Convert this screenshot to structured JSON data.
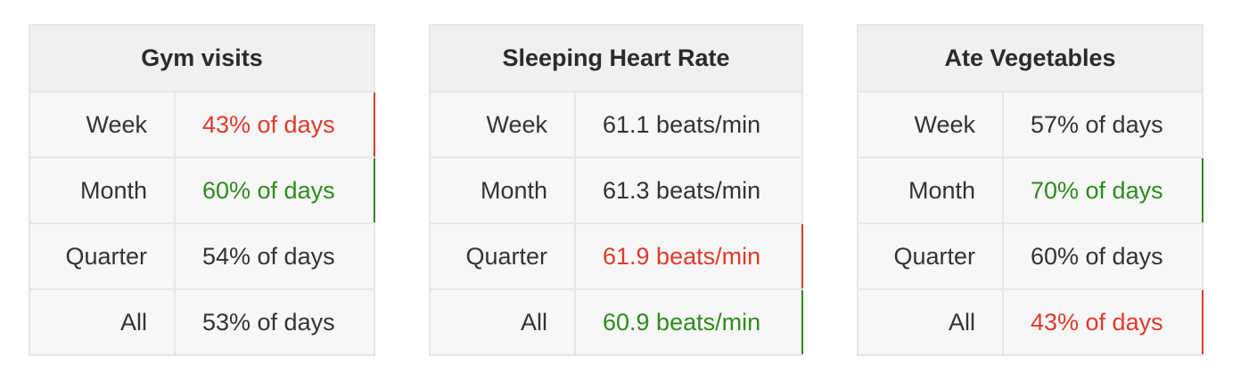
{
  "tables": [
    {
      "title": "Gym visits",
      "rows": [
        {
          "period": "Week",
          "value": "43% of days",
          "status": "bad"
        },
        {
          "period": "Month",
          "value": "60% of days",
          "status": "good"
        },
        {
          "period": "Quarter",
          "value": "54% of days",
          "status": "neutral"
        },
        {
          "period": "All",
          "value": "53% of days",
          "status": "neutral"
        }
      ]
    },
    {
      "title": "Sleeping Heart Rate",
      "rows": [
        {
          "period": "Week",
          "value": "61.1 beats/min",
          "status": "neutral"
        },
        {
          "period": "Month",
          "value": "61.3 beats/min",
          "status": "neutral"
        },
        {
          "period": "Quarter",
          "value": "61.9 beats/min",
          "status": "bad"
        },
        {
          "period": "All",
          "value": "60.9 beats/min",
          "status": "good"
        }
      ]
    },
    {
      "title": "Ate Vegetables",
      "rows": [
        {
          "period": "Week",
          "value": "57% of days",
          "status": "neutral"
        },
        {
          "period": "Month",
          "value": "70% of days",
          "status": "good"
        },
        {
          "period": "Quarter",
          "value": "60% of days",
          "status": "neutral"
        },
        {
          "period": "All",
          "value": "43% of days",
          "status": "bad"
        }
      ]
    }
  ],
  "colors": {
    "bad": "#e03a2b",
    "good": "#2e8b1f",
    "neutral": "#333333",
    "header_bg": "#f0f0f0",
    "cell_bg": "#f7f7f7",
    "border": "#e6e6e6"
  }
}
